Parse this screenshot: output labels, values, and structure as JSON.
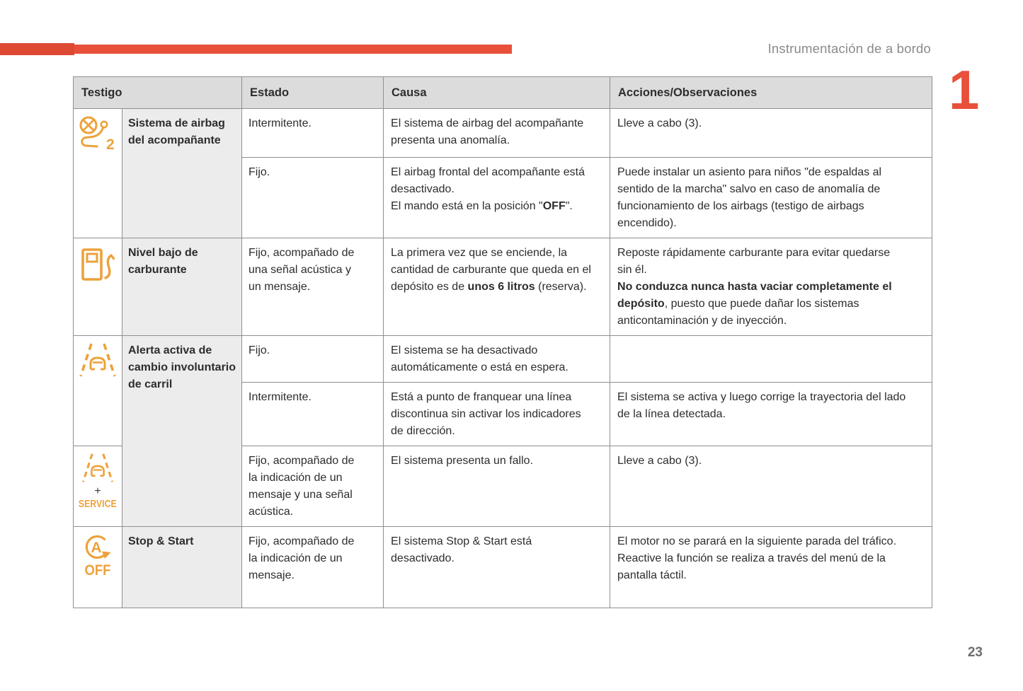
{
  "page": {
    "header_title": "Instrumentación de a bordo",
    "chapter_number": "1",
    "page_number": "23"
  },
  "colors": {
    "accent_red": "#e8503a",
    "accent_red_dark": "#de4934",
    "icon_orange": "#eda23b",
    "header_gray": "#dcdcdc",
    "name_gray": "#ececec",
    "border_gray": "#8f8f8f",
    "text_dark": "#2d2d2d",
    "muted_gray": "#8a8a8a",
    "page_num_gray": "#6d6d72"
  },
  "icons": {
    "airbag_number": "2",
    "service_plus": "+",
    "service_label": "SERVICE",
    "stopstart_letter": "A",
    "stopstart_off": "OFF"
  },
  "table": {
    "headers": {
      "testigo": "Testigo",
      "estado": "Estado",
      "causa": "Causa",
      "acciones": "Acciones/Observaciones"
    },
    "groups": [
      {
        "icon": "passenger-airbag-warning-icon",
        "name": "Sistema de airbag del acompañante",
        "entries": [
          {
            "estado": "Intermitente.",
            "causa": "El sistema de airbag del acompañante presenta una anomalía.",
            "acciones": "Lleve a cabo (3)."
          },
          {
            "estado": "Fijo.",
            "causa": "El airbag frontal del acompañante está desactivado.\nEl mando está en la posición \"**OFF**\".",
            "acciones": "Puede instalar un asiento para niños \"de espaldas al sentido de la marcha\" salvo en caso de anomalía de funcionamiento de los airbags (testigo de airbags encendido)."
          }
        ]
      },
      {
        "icon": "low-fuel-warning-icon",
        "name": "Nivel bajo de carburante",
        "entries": [
          {
            "estado": "Fijo, acompañado de una señal acústica y un mensaje.",
            "causa": "La primera vez que se enciende, la cantidad de carburante que queda en el depósito es de **unos 6 litros** (reserva).",
            "acciones": "Reposte rápidamente carburante para evitar quedarse sin él.\n**No conduzca nunca hasta vaciar completamente el depósito**, puesto que puede dañar los sistemas anticontaminación y de inyección."
          }
        ]
      },
      {
        "icon": "lane-departure-warning-icon",
        "name": "Alerta activa de cambio involuntario de carril",
        "entries": [
          {
            "estado": "Fijo.",
            "causa": "El sistema se ha desactivado automáticamente o está en espera.",
            "acciones": ""
          },
          {
            "estado": "Intermitente.",
            "causa": "Está a punto de franquear una línea discontinua sin activar los indicadores de dirección.",
            "acciones": "El sistema se activa y luego corrige la trayectoria del lado de la línea detectada."
          },
          {
            "estado": "Fijo, acompañado de la indicación de un mensaje y una señal acústica.",
            "causa": "El sistema presenta un fallo.",
            "acciones": "Lleve a cabo (3)."
          }
        ]
      },
      {
        "icon": "stop-start-off-icon",
        "name": "Stop & Start",
        "entries": [
          {
            "estado": "Fijo, acompañado de la indicación de un mensaje.",
            "causa": "El sistema Stop & Start está desactivado.",
            "acciones": "El motor no se parará en la siguiente parada del tráfico.\nReactive la función se realiza a través del menú de la pantalla táctil."
          }
        ]
      }
    ]
  }
}
